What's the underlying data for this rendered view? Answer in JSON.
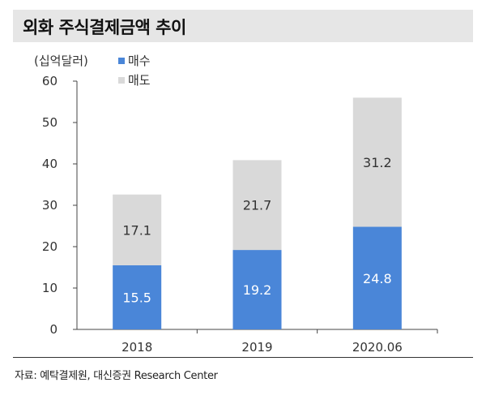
{
  "header": {
    "title": "외화 주식결제금액 추이"
  },
  "footer": {
    "source": "자료: 예탁결제원, 대신증권 Research Center"
  },
  "chart_data": {
    "type": "bar",
    "stacked": true,
    "unit_label": "(십억달러)",
    "categories": [
      "2018",
      "2019",
      "2020.06"
    ],
    "series": [
      {
        "name": "매수",
        "values": [
          15.5,
          19.2,
          24.8
        ],
        "color": "#4a86d8"
      },
      {
        "name": "매도",
        "values": [
          17.1,
          21.7,
          31.2
        ],
        "color": "#d9d9d9"
      }
    ],
    "ylim": [
      0,
      60
    ],
    "yticks": [
      0,
      10,
      20,
      30,
      40,
      50,
      60
    ],
    "value_label_colors": [
      "#ffffff",
      "#333333"
    ],
    "grid": false,
    "legend_position": "top-left"
  }
}
